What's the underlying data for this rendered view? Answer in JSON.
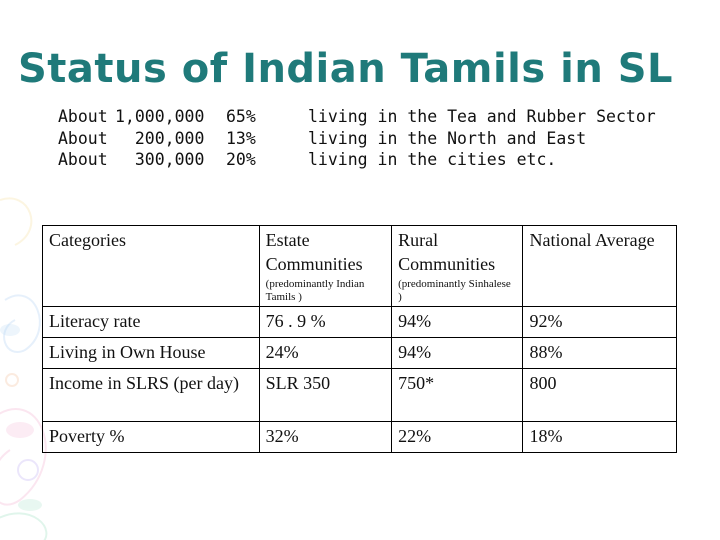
{
  "slide": {
    "title": "Status of Indian Tamils in SL"
  },
  "stats": [
    {
      "about": "About",
      "amount": "1,000,000",
      "percent": "65%",
      "description": "living in the Tea and Rubber Sector"
    },
    {
      "about": "About",
      "amount": "  200,000",
      "percent": "13%",
      "description": "living in the North and East"
    },
    {
      "about": "About",
      "amount": "  300,000",
      "percent": "20%",
      "description": "living in the cities etc."
    }
  ],
  "table": {
    "headers": {
      "categories": "Categories",
      "estate": "Estate Communities",
      "estate_note": "(predominantly Indian Tamils )",
      "rural": "Rural Communities",
      "rural_note": "(predominantly Sinhalese )",
      "national": "National Average"
    },
    "rows": [
      {
        "category": "Literacy rate",
        "estate": "76 . 9 %",
        "rural": "94%",
        "national": "92%"
      },
      {
        "category": "Living in Own House",
        "estate": "24%",
        "rural": "94%",
        "national": "88%"
      },
      {
        "category": "Income in SLRS (per day)",
        "estate": "SLR 350",
        "rural": "750*",
        "national": "800"
      },
      {
        "category": "Poverty  %",
        "estate": "32%",
        "rural": "22%",
        "national": "18%"
      }
    ]
  }
}
